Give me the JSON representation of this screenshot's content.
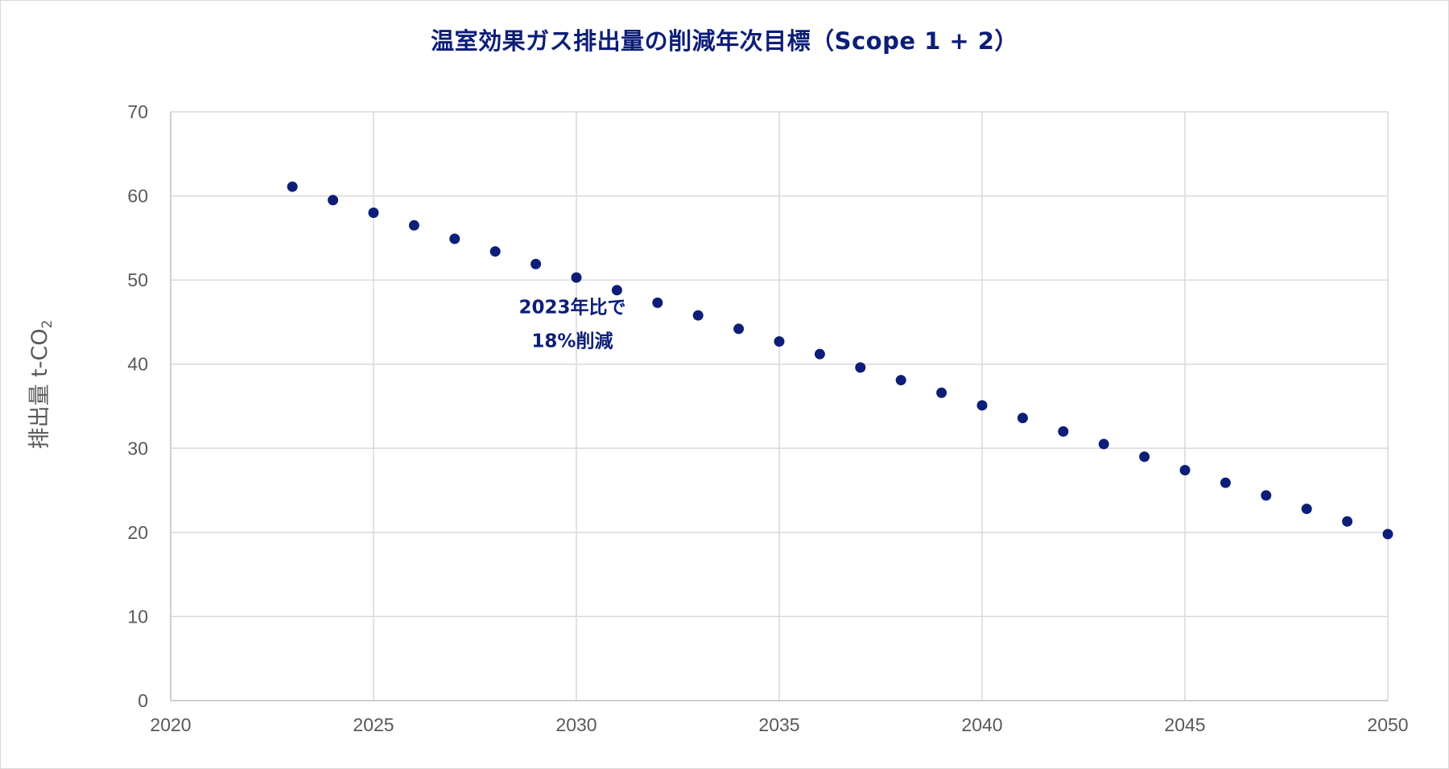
{
  "chart_data": {
    "type": "scatter",
    "title": "温室効果ガス排出量の削減年次目標（Scope 1 + 2）",
    "ylabel_main": "排出量 t-CO",
    "ylabel_sub": "2",
    "xlim": [
      2020,
      2050
    ],
    "ylim": [
      0,
      70
    ],
    "x_ticks": [
      "2020",
      "2025",
      "2030",
      "2035",
      "2040",
      "2045",
      "2050"
    ],
    "y_ticks": [
      "0",
      "10",
      "20",
      "30",
      "40",
      "50",
      "60",
      "70"
    ],
    "grid": true,
    "marker_color": "#0d1e78",
    "points": [
      {
        "x": 2023,
        "y": 61.1
      },
      {
        "x": 2024,
        "y": 59.5
      },
      {
        "x": 2025,
        "y": 58.0
      },
      {
        "x": 2026,
        "y": 56.5
      },
      {
        "x": 2027,
        "y": 54.9
      },
      {
        "x": 2028,
        "y": 53.4
      },
      {
        "x": 2029,
        "y": 51.9
      },
      {
        "x": 2030,
        "y": 50.3
      },
      {
        "x": 2031,
        "y": 48.8
      },
      {
        "x": 2032,
        "y": 47.3
      },
      {
        "x": 2033,
        "y": 45.8
      },
      {
        "x": 2034,
        "y": 44.2
      },
      {
        "x": 2035,
        "y": 42.7
      },
      {
        "x": 2036,
        "y": 41.2
      },
      {
        "x": 2037,
        "y": 39.6
      },
      {
        "x": 2038,
        "y": 38.1
      },
      {
        "x": 2039,
        "y": 36.6
      },
      {
        "x": 2040,
        "y": 35.1
      },
      {
        "x": 2041,
        "y": 33.6
      },
      {
        "x": 2042,
        "y": 32.0
      },
      {
        "x": 2043,
        "y": 30.5
      },
      {
        "x": 2044,
        "y": 29.0
      },
      {
        "x": 2045,
        "y": 27.4
      },
      {
        "x": 2046,
        "y": 25.9
      },
      {
        "x": 2047,
        "y": 24.4
      },
      {
        "x": 2048,
        "y": 22.8
      },
      {
        "x": 2049,
        "y": 21.3
      },
      {
        "x": 2050,
        "y": 19.8
      }
    ],
    "annotation": {
      "lines": [
        "2023年比で",
        "18%削減"
      ],
      "x": 2029.9,
      "y": 44.8
    }
  }
}
